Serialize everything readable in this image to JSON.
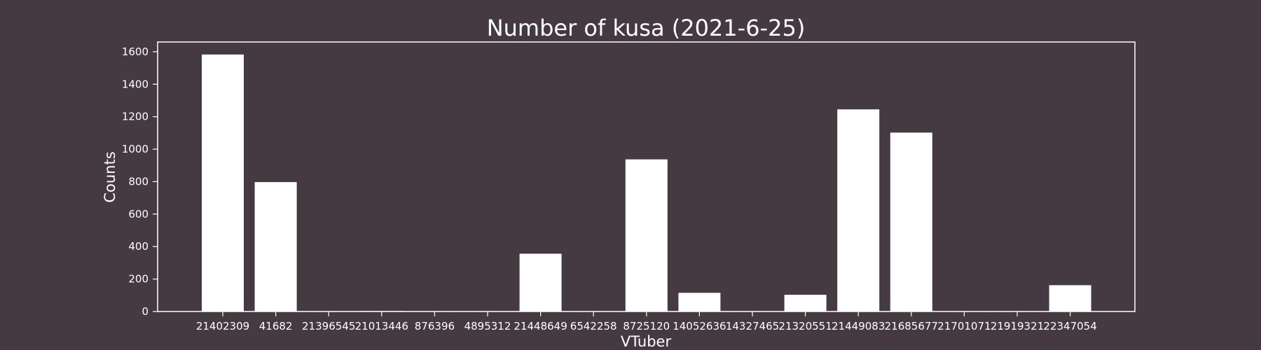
{
  "chart_data": {
    "type": "bar",
    "title": "Number of kusa (2021-6-25)",
    "xlabel": "VTuber",
    "ylabel": "Counts",
    "ylim": [
      0,
      1660
    ],
    "yticks": [
      0,
      200,
      400,
      600,
      800,
      1000,
      1200,
      1400,
      1600
    ],
    "grid": false,
    "legend": "none",
    "categories": [
      "21402309",
      "41682",
      "21396545",
      "21013446",
      "876396",
      "4895312",
      "21448649",
      "6542258",
      "8725120",
      "14052636",
      "14327465",
      "21320551",
      "21449083",
      "21685677",
      "21701071",
      "21919321",
      "22347054"
    ],
    "values": [
      1583,
      797,
      0,
      3,
      0,
      0,
      356,
      0,
      937,
      115,
      0,
      103,
      1245,
      1102,
      0,
      0,
      162
    ],
    "colors": {
      "background": "#463a42",
      "bar": "#ffffff",
      "axis": "#ffffff",
      "text": "#ffffff"
    }
  }
}
